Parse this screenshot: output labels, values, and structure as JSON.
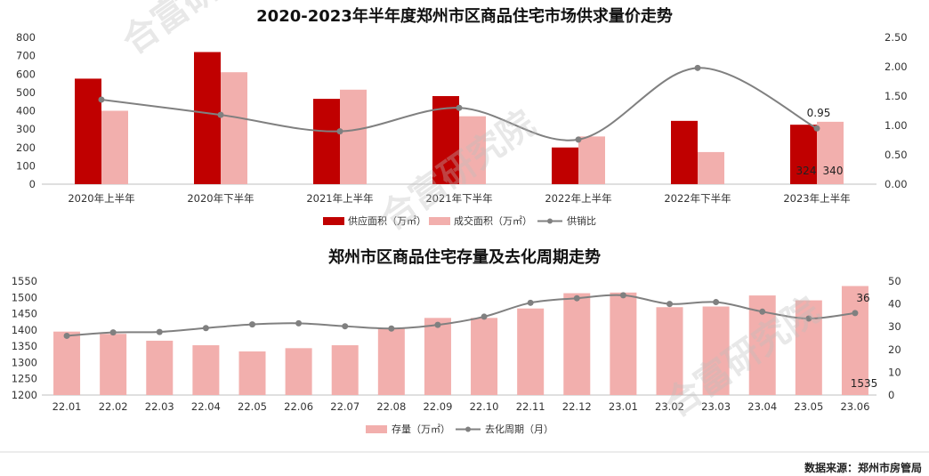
{
  "watermark": "合富研究院",
  "source_text": "数据来源：郑州市房管局",
  "colors": {
    "supply": "#C00000",
    "deal": "#F2AFAD",
    "line": "#808080",
    "axis": "#BFBFBF"
  },
  "chart_data": [
    {
      "type": "bar",
      "title": "2020-2023年半年度郑州市区商品住宅市场供求量价走势",
      "categories": [
        "2020年上半年",
        "2020年下半年",
        "2021年上半年",
        "2021年下半年",
        "2022年上半年",
        "2022年下半年",
        "2023年上半年"
      ],
      "series": [
        {
          "name": "供应面积（万㎡）",
          "values": [
            575,
            720,
            465,
            480,
            200,
            345,
            324
          ],
          "axis": "left"
        },
        {
          "name": "成交面积（万㎡）",
          "values": [
            400,
            610,
            515,
            370,
            260,
            175,
            340
          ],
          "axis": "left"
        },
        {
          "name": "供销比",
          "type": "line",
          "values": [
            1.44,
            1.18,
            0.9,
            1.3,
            0.76,
            1.98,
            0.95
          ],
          "axis": "right"
        }
      ],
      "ylim": [
        0,
        800
      ],
      "yticks": [
        "0",
        "100",
        "200",
        "300",
        "400",
        "500",
        "600",
        "700",
        "800"
      ],
      "y2lim": [
        0,
        2.5
      ],
      "y2ticks": [
        "0.00",
        "0.50",
        "1.00",
        "1.50",
        "2.00",
        "2.50"
      ],
      "data_labels": {
        "supply_last": "324",
        "deal_last": "340",
        "ratio_last": "0.95"
      },
      "legend_position": "bottom-center"
    },
    {
      "type": "bar",
      "title": "郑州市区商品住宅存量及去化周期走势",
      "categories": [
        "22.01",
        "22.02",
        "22.03",
        "22.04",
        "22.05",
        "22.06",
        "22.07",
        "22.08",
        "22.09",
        "22.10",
        "22.11",
        "22.12",
        "23.01",
        "23.02",
        "23.03",
        "23.04",
        "23.05",
        "23.06"
      ],
      "series": [
        {
          "name": "存量（万㎡）",
          "values": [
            1395,
            1388,
            1367,
            1353,
            1334,
            1344,
            1353,
            1406,
            1437,
            1437,
            1466,
            1513,
            1515,
            1470,
            1472,
            1506,
            1491,
            1535
          ],
          "axis": "left"
        },
        {
          "name": "去化周期（月）",
          "type": "line",
          "values": [
            26.0,
            27.5,
            27.7,
            29.4,
            31.0,
            31.5,
            30.2,
            29.2,
            30.8,
            34.4,
            40.5,
            42.5,
            43.8,
            40.0,
            40.8,
            36.6,
            33.6,
            36.0
          ],
          "axis": "right"
        }
      ],
      "ylim": [
        1200,
        1550
      ],
      "yticks": [
        "1200",
        "1250",
        "1300",
        "1350",
        "1400",
        "1450",
        "1500",
        "1550"
      ],
      "y2lim": [
        0,
        50
      ],
      "y2ticks": [
        "0",
        "10",
        "20",
        "30",
        "40",
        "50"
      ],
      "data_labels": {
        "stock_last": "1535",
        "cycle_last": "36"
      },
      "legend_position": "bottom-center"
    }
  ]
}
